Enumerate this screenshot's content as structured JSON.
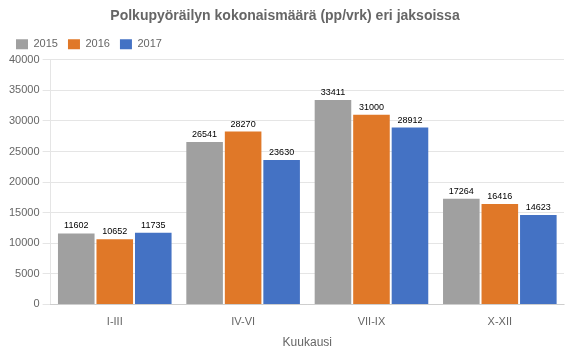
{
  "chart_data": {
    "type": "bar",
    "title": "Polkupyöräilyn kokonaismäärä (pp/vrk) eri jaksoissa",
    "x_label": "Kuukausi",
    "categories": [
      "I-III",
      "IV-VI",
      "VII-IX",
      "X-XII"
    ],
    "series": [
      {
        "name": "2015",
        "color": "#A0A0A0",
        "values": [
          11602,
          26541,
          33411,
          17264
        ]
      },
      {
        "name": "2016",
        "color": "#E07828",
        "values": [
          10652,
          28270,
          31000,
          16416
        ]
      },
      {
        "name": "2017",
        "color": "#4472C4",
        "values": [
          11735,
          23630,
          28912,
          14623
        ]
      }
    ],
    "ylim": [
      0,
      40000
    ],
    "yticks": [
      0,
      5000,
      10000,
      15000,
      20000,
      25000,
      30000,
      35000,
      40000
    ],
    "grid": true,
    "legend": "upper left",
    "data_labels": true
  }
}
